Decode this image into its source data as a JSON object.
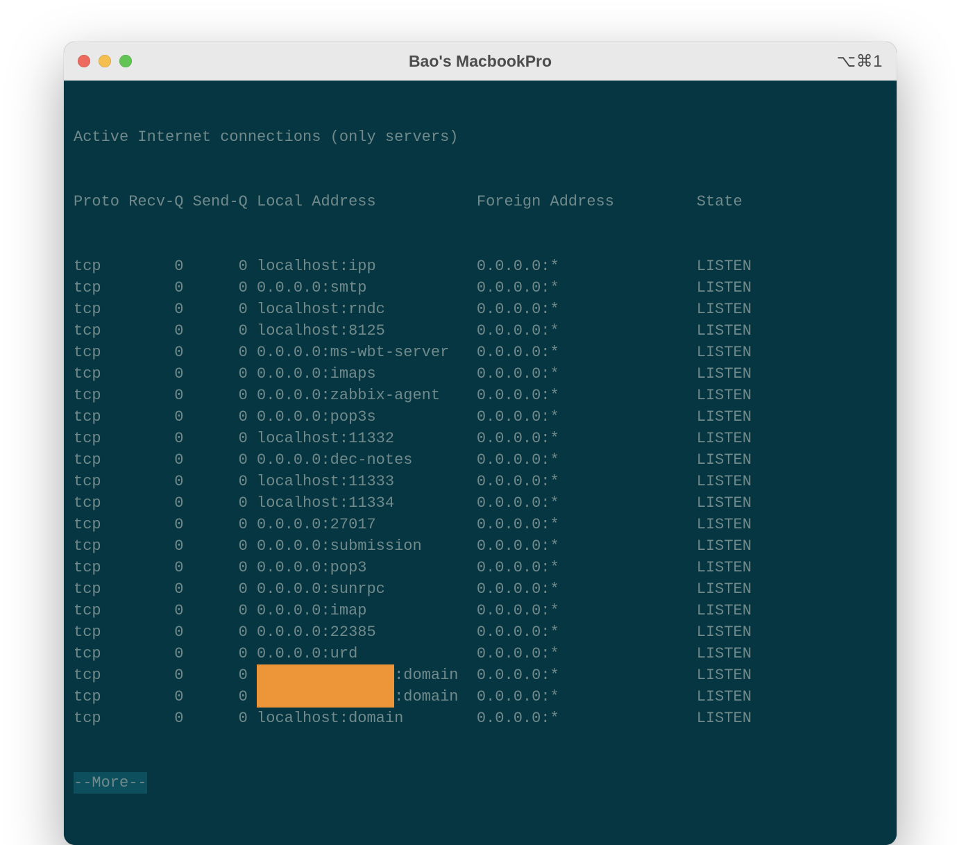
{
  "colors": {
    "page_bg": "#ffffff",
    "window_bg": "#063642",
    "titlebar_bg": "#e9e9e9",
    "titlebar_text": "#4d4d4d",
    "term_text": "#708a8b",
    "more_bg": "#0e4f5d",
    "redaction": "#ed9639",
    "traffic_red": "#ec6a5e",
    "traffic_yellow": "#f4be50",
    "traffic_green": "#61c454"
  },
  "window": {
    "title": "Bao's MacbookPro",
    "shortcut_hint": "⌥⌘1"
  },
  "terminal": {
    "header_line": "Active Internet connections (only servers)",
    "columns_line": "Proto Recv-Q Send-Q Local Address           Foreign Address         State",
    "more_prompt": "--More--",
    "redaction_width_ch": 15,
    "rows": [
      {
        "proto": "tcp",
        "recvq": "0",
        "sendq": "0",
        "local": "localhost:ipp",
        "foreign": "0.0.0.0:*",
        "state": "LISTEN",
        "redacted": false
      },
      {
        "proto": "tcp",
        "recvq": "0",
        "sendq": "0",
        "local": "0.0.0.0:smtp",
        "foreign": "0.0.0.0:*",
        "state": "LISTEN",
        "redacted": false
      },
      {
        "proto": "tcp",
        "recvq": "0",
        "sendq": "0",
        "local": "localhost:rndc",
        "foreign": "0.0.0.0:*",
        "state": "LISTEN",
        "redacted": false
      },
      {
        "proto": "tcp",
        "recvq": "0",
        "sendq": "0",
        "local": "localhost:8125",
        "foreign": "0.0.0.0:*",
        "state": "LISTEN",
        "redacted": false
      },
      {
        "proto": "tcp",
        "recvq": "0",
        "sendq": "0",
        "local": "0.0.0.0:ms-wbt-server",
        "foreign": "0.0.0.0:*",
        "state": "LISTEN",
        "redacted": false
      },
      {
        "proto": "tcp",
        "recvq": "0",
        "sendq": "0",
        "local": "0.0.0.0:imaps",
        "foreign": "0.0.0.0:*",
        "state": "LISTEN",
        "redacted": false
      },
      {
        "proto": "tcp",
        "recvq": "0",
        "sendq": "0",
        "local": "0.0.0.0:zabbix-agent",
        "foreign": "0.0.0.0:*",
        "state": "LISTEN",
        "redacted": false
      },
      {
        "proto": "tcp",
        "recvq": "0",
        "sendq": "0",
        "local": "0.0.0.0:pop3s",
        "foreign": "0.0.0.0:*",
        "state": "LISTEN",
        "redacted": false
      },
      {
        "proto": "tcp",
        "recvq": "0",
        "sendq": "0",
        "local": "localhost:11332",
        "foreign": "0.0.0.0:*",
        "state": "LISTEN",
        "redacted": false
      },
      {
        "proto": "tcp",
        "recvq": "0",
        "sendq": "0",
        "local": "0.0.0.0:dec-notes",
        "foreign": "0.0.0.0:*",
        "state": "LISTEN",
        "redacted": false
      },
      {
        "proto": "tcp",
        "recvq": "0",
        "sendq": "0",
        "local": "localhost:11333",
        "foreign": "0.0.0.0:*",
        "state": "LISTEN",
        "redacted": false
      },
      {
        "proto": "tcp",
        "recvq": "0",
        "sendq": "0",
        "local": "localhost:11334",
        "foreign": "0.0.0.0:*",
        "state": "LISTEN",
        "redacted": false
      },
      {
        "proto": "tcp",
        "recvq": "0",
        "sendq": "0",
        "local": "0.0.0.0:27017",
        "foreign": "0.0.0.0:*",
        "state": "LISTEN",
        "redacted": false
      },
      {
        "proto": "tcp",
        "recvq": "0",
        "sendq": "0",
        "local": "0.0.0.0:submission",
        "foreign": "0.0.0.0:*",
        "state": "LISTEN",
        "redacted": false
      },
      {
        "proto": "tcp",
        "recvq": "0",
        "sendq": "0",
        "local": "0.0.0.0:pop3",
        "foreign": "0.0.0.0:*",
        "state": "LISTEN",
        "redacted": false
      },
      {
        "proto": "tcp",
        "recvq": "0",
        "sendq": "0",
        "local": "0.0.0.0:sunrpc",
        "foreign": "0.0.0.0:*",
        "state": "LISTEN",
        "redacted": false
      },
      {
        "proto": "tcp",
        "recvq": "0",
        "sendq": "0",
        "local": "0.0.0.0:imap",
        "foreign": "0.0.0.0:*",
        "state": "LISTEN",
        "redacted": false
      },
      {
        "proto": "tcp",
        "recvq": "0",
        "sendq": "0",
        "local": "0.0.0.0:22385",
        "foreign": "0.0.0.0:*",
        "state": "LISTEN",
        "redacted": false
      },
      {
        "proto": "tcp",
        "recvq": "0",
        "sendq": "0",
        "local": "0.0.0.0:urd",
        "foreign": "0.0.0.0:*",
        "state": "LISTEN",
        "redacted": false
      },
      {
        "proto": "tcp",
        "recvq": "0",
        "sendq": "0",
        "local_suffix": ":domain",
        "foreign": "0.0.0.0:*",
        "state": "LISTEN",
        "redacted": true
      },
      {
        "proto": "tcp",
        "recvq": "0",
        "sendq": "0",
        "local_suffix": ":domain",
        "foreign": "0.0.0.0:*",
        "state": "LISTEN",
        "redacted": true
      },
      {
        "proto": "tcp",
        "recvq": "0",
        "sendq": "0",
        "local": "localhost:domain",
        "foreign": "0.0.0.0:*",
        "state": "LISTEN",
        "redacted": false
      }
    ]
  }
}
